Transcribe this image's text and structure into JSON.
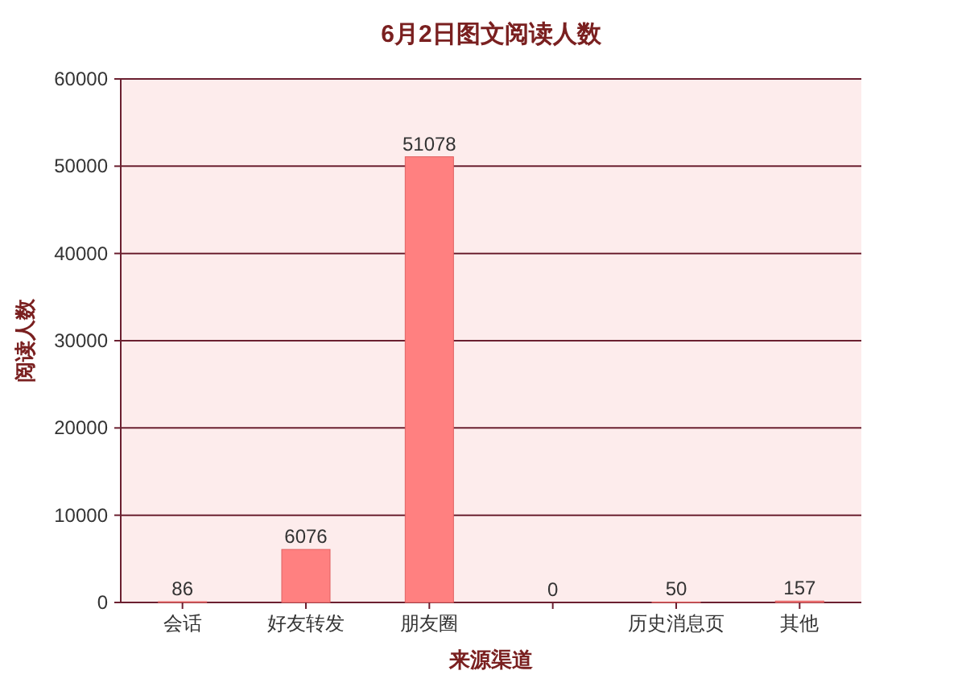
{
  "chart_data": {
    "type": "bar",
    "title": "6月2日图文阅读人数",
    "xlabel": "来源渠道",
    "ylabel": "阅读人数",
    "categories": [
      "会话",
      "好友转发",
      "朋友圈",
      null,
      "历史消息页",
      "其他"
    ],
    "values": [
      86,
      6076,
      51078,
      0,
      50,
      157
    ],
    "color": "#ff8080",
    "ylim": [
      0,
      60000
    ],
    "yticks": [
      0,
      10000,
      20000,
      30000,
      40000,
      50000,
      60000
    ],
    "grid": "y",
    "data_labels": true
  }
}
